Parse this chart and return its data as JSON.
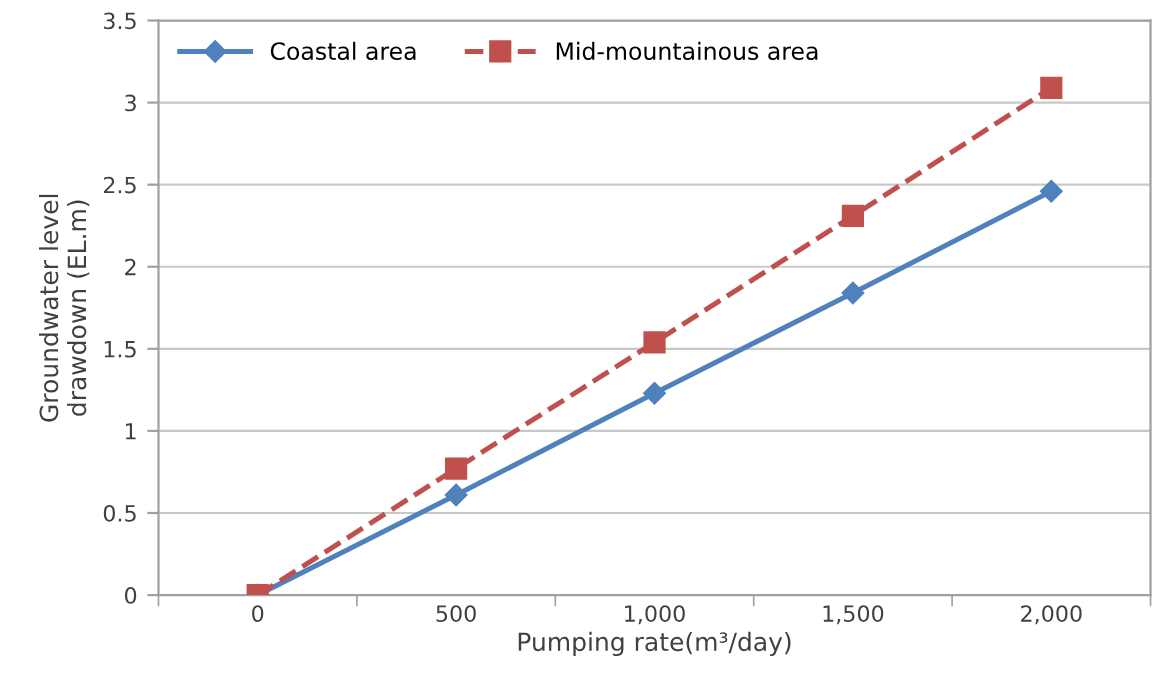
{
  "chart_data": {
    "type": "line",
    "categories": [
      "0",
      "500",
      "1,000",
      "1,500",
      "2,000"
    ],
    "series": [
      {
        "name": "Coastal area",
        "color": "#4f81bd",
        "values": [
          0,
          0.61,
          1.23,
          1.84,
          2.46
        ],
        "marker": "diamond",
        "line_style": "solid"
      },
      {
        "name": "Mid-mountainous area",
        "color": "#c0504d",
        "values": [
          0,
          0.77,
          1.54,
          2.31,
          3.09
        ],
        "marker": "square",
        "line_style": "dashed"
      }
    ],
    "xlabel": "Pumping rate(m³/day)",
    "ylabel": "Groundwater level\ndrawdown (EL.m)",
    "ylim": [
      0,
      3.5
    ],
    "yticks": [
      0,
      0.5,
      1,
      1.5,
      2,
      2.5,
      3,
      3.5
    ],
    "grid": "y",
    "legend": "top left"
  }
}
